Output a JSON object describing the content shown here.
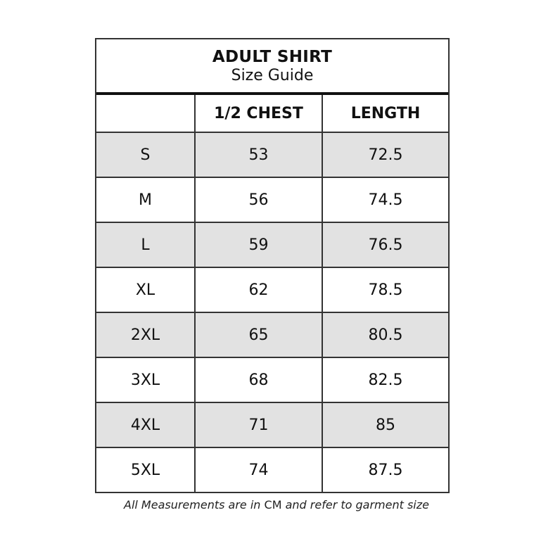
{
  "title": {
    "line1": "ADULT SHIRT",
    "line2": "Size Guide"
  },
  "columns": [
    "",
    "1/2 CHEST",
    "LENGTH"
  ],
  "rows": [
    [
      "S",
      "53",
      "72.5"
    ],
    [
      "M",
      "56",
      "74.5"
    ],
    [
      "L",
      "59",
      "76.5"
    ],
    [
      "XL",
      "62",
      "78.5"
    ],
    [
      "2XL",
      "65",
      "80.5"
    ],
    [
      "3XL",
      "68",
      "82.5"
    ],
    [
      "4XL",
      "71",
      "85"
    ],
    [
      "5XL",
      "74",
      "87.5"
    ]
  ],
  "footer": {
    "before": "All Measurements are in ",
    "unit": "CM",
    "after": " and refer to garment size"
  },
  "colors": {
    "shaded_row": "#e2e2e2",
    "border": "#333333"
  }
}
